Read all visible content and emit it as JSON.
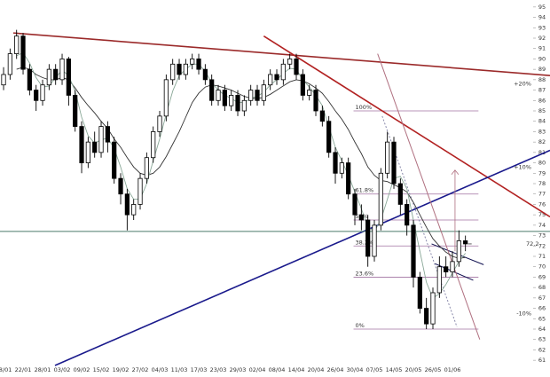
{
  "chart_data": {
    "type": "candlestick",
    "categories": [
      "18/01",
      null,
      null,
      "22/01",
      null,
      null,
      "28/01",
      null,
      null,
      "03/02",
      null,
      null,
      "09/02",
      null,
      null,
      "15/02",
      null,
      null,
      "19/02",
      null,
      null,
      "27/02",
      null,
      null,
      "04/03",
      null,
      null,
      "11/03",
      null,
      null,
      "17/03",
      null,
      null,
      "23/03",
      null,
      null,
      "29/03",
      null,
      null,
      "02/04",
      null,
      null,
      "08/04",
      null,
      null,
      "14/04",
      null,
      null,
      "20/04",
      null,
      null,
      "26/04",
      null,
      null,
      "30/04",
      null,
      null,
      "07/05",
      null,
      null,
      "14/05",
      null,
      null,
      "20/05",
      null,
      null,
      "26/05",
      null,
      null,
      "01/06",
      null,
      null
    ],
    "open": [
      87.5,
      88.5,
      90.5,
      92.2,
      89.0,
      87.0,
      86.0,
      87.5,
      89.0,
      88.0,
      90.0,
      86.5,
      83.5,
      80.0,
      82.0,
      81.0,
      83.5,
      82.0,
      78.5,
      77.0,
      75.0,
      76.0,
      78.5,
      80.5,
      83.0,
      84.5,
      88.0,
      89.5,
      88.5,
      89.5,
      90.0,
      89.0,
      88.0,
      86.0,
      87.0,
      85.5,
      86.5,
      85.0,
      86.0,
      87.0,
      86.0,
      87.5,
      88.5,
      88.0,
      89.5,
      90.0,
      88.5,
      86.5,
      87.0,
      85.0,
      84.0,
      81.0,
      79.0,
      80.0,
      77.0,
      75.0,
      74.5,
      71.0,
      74.0,
      79.0,
      82.0,
      78.0,
      76.0,
      74.0,
      69.0,
      66.0,
      64.5,
      67.5,
      70.0,
      69.5,
      70.5,
      72.5
    ],
    "high": [
      89.2,
      91.0,
      92.8,
      92.5,
      89.5,
      87.5,
      88.0,
      89.5,
      89.5,
      90.5,
      90.2,
      87.0,
      84.0,
      82.5,
      83.0,
      84.0,
      84.0,
      82.5,
      79.0,
      77.5,
      76.5,
      79.0,
      81.0,
      83.5,
      85.0,
      88.5,
      90.0,
      90.0,
      90.0,
      90.5,
      90.5,
      89.5,
      88.5,
      87.5,
      87.5,
      87.0,
      87.0,
      86.5,
      87.5,
      87.5,
      88.0,
      89.0,
      89.0,
      90.0,
      90.5,
      90.5,
      89.0,
      87.5,
      87.5,
      85.5,
      84.5,
      81.5,
      80.5,
      80.5,
      77.5,
      76.0,
      75.0,
      74.5,
      79.5,
      83.0,
      82.5,
      78.5,
      76.5,
      74.5,
      69.5,
      67.0,
      68.0,
      71.0,
      71.0,
      71.5,
      73.5,
      73.0
    ],
    "low": [
      87.0,
      88.0,
      90.0,
      88.5,
      86.5,
      85.0,
      85.5,
      87.0,
      87.5,
      87.5,
      85.5,
      83.0,
      79.0,
      79.5,
      80.5,
      80.5,
      81.0,
      78.0,
      76.0,
      73.5,
      74.5,
      75.5,
      78.0,
      80.0,
      82.5,
      84.0,
      87.5,
      88.0,
      88.0,
      89.0,
      88.5,
      87.5,
      85.5,
      85.5,
      85.0,
      85.0,
      84.5,
      84.5,
      85.5,
      85.5,
      85.5,
      87.0,
      87.5,
      87.5,
      89.0,
      88.0,
      86.0,
      86.0,
      84.5,
      83.5,
      80.5,
      78.0,
      78.5,
      76.5,
      74.0,
      73.5,
      70.0,
      70.5,
      73.5,
      78.5,
      77.5,
      75.0,
      73.0,
      68.0,
      65.5,
      64.0,
      64.0,
      67.0,
      69.0,
      69.0,
      70.0,
      71.5
    ],
    "close": [
      88.5,
      90.5,
      92.2,
      89.0,
      87.0,
      86.0,
      87.5,
      89.0,
      88.0,
      90.0,
      86.5,
      83.5,
      80.0,
      82.0,
      81.0,
      83.5,
      82.0,
      78.5,
      77.0,
      75.0,
      76.0,
      78.5,
      80.5,
      83.0,
      84.5,
      88.0,
      89.5,
      88.5,
      89.5,
      90.0,
      89.0,
      88.0,
      86.0,
      87.0,
      85.5,
      86.5,
      85.0,
      86.0,
      87.0,
      86.0,
      87.5,
      88.5,
      88.0,
      89.5,
      90.0,
      88.5,
      86.5,
      87.0,
      85.0,
      84.0,
      81.0,
      79.0,
      80.0,
      77.0,
      75.0,
      74.5,
      71.0,
      74.0,
      79.0,
      82.0,
      78.0,
      76.0,
      74.0,
      69.0,
      66.0,
      64.5,
      67.5,
      70.0,
      69.5,
      70.5,
      72.5,
      72.2
    ],
    "series": [
      {
        "color": "#333333",
        "values": [
          null,
          null,
          89,
          89.2,
          89.0,
          88.5,
          88.2,
          88.0,
          88.0,
          88.2,
          88.0,
          87.2,
          86.3,
          85.5,
          84.8,
          84.0,
          83.3,
          82.3,
          81.5,
          80.5,
          79.6,
          79.0,
          78.8,
          79.0,
          79.6,
          80.6,
          81.8,
          83.0,
          84.4,
          85.8,
          86.7,
          87.3,
          87.5,
          87.4,
          87.2,
          87.0,
          86.7,
          86.4,
          86.2,
          86.2,
          86.3,
          86.6,
          87.0,
          87.4,
          87.8,
          88.0,
          87.9,
          87.6,
          87.2,
          86.7,
          85.9,
          85.0,
          84.2,
          83.2,
          82.0,
          80.9,
          79.6,
          78.8,
          78.3,
          78.2,
          77.9,
          77.6,
          77.2,
          76.2,
          75.0,
          73.8,
          72.7,
          72.0,
          71.4,
          71.0,
          70.8,
          70.9
        ]
      },
      {
        "color": "#8aa898",
        "values": [
          null,
          null,
          90.3,
          90.6,
          89.6,
          88.2,
          87.3,
          87.4,
          88.2,
          88.9,
          88.4,
          86.9,
          84.4,
          82.6,
          81.9,
          82.2,
          82.4,
          81.4,
          79.6,
          77.5,
          76.5,
          76.5,
          78.0,
          80.2,
          82.3,
          84.7,
          86.9,
          88.4,
          89.0,
          89.5,
          89.5,
          88.8,
          87.7,
          87.0,
          86.5,
          86.2,
          85.8,
          85.8,
          86.2,
          86.4,
          86.8,
          87.5,
          88.0,
          88.6,
          89.1,
          89.0,
          88.0,
          87.3,
          86.5,
          85.5,
          83.5,
          81.5,
          80.2,
          78.8,
          77.2,
          75.6,
          73.8,
          73.4,
          74.5,
          76.5,
          78.5,
          78.7,
          77.5,
          74.5,
          71.5,
          68.5,
          67.0,
          67.4,
          68.3,
          69.4,
          70.5,
          71.3
        ]
      }
    ],
    "trendlines": [
      {
        "color": "#9b2a2a",
        "x": [
          1.5,
          84
        ],
        "y": [
          92.5,
          88.4
        ]
      },
      {
        "color": "#b22222",
        "x": [
          40,
          84
        ],
        "y": [
          92.2,
          74.8
        ]
      },
      {
        "color": "#1a1a8c",
        "x": [
          7.9,
          84
        ],
        "y": [
          60.5,
          81.2
        ]
      },
      {
        "color": "#4a7a6a",
        "x": [
          -0.55,
          84
        ],
        "y": [
          73.4,
          73.4
        ]
      },
      {
        "color": "#101050",
        "x": [
          65.8,
          73.8
        ],
        "y": [
          72.2,
          70.2
        ]
      },
      {
        "color": "#101050",
        "x": [
          66.3,
          72.2
        ],
        "y": [
          70.3,
          68.7
        ]
      },
      {
        "color": "#b07080",
        "x": [
          57.5,
          73.2
        ],
        "y": [
          90.5,
          63.0
        ]
      },
      {
        "color": "#8888aa",
        "x": [
          58.2,
          69.7
        ],
        "y": [
          84.5,
          64.2
        ],
        "dash": true
      }
    ],
    "fib_range": [
      53.8,
      73
    ],
    "fib_color": "#a070a0",
    "fib_levels": [
      {
        "value": 85,
        "label": "100%"
      },
      {
        "value": 77,
        "label": "61.8%"
      },
      {
        "value": 74.5,
        "label": "50%"
      },
      {
        "value": 72,
        "label": "38.2%"
      },
      {
        "value": 69,
        "label": "23.6%"
      },
      {
        "value": 64,
        "label": "0%"
      }
    ],
    "arrow": {
      "x": 69.4,
      "from": 71.5,
      "to": 79.3
    },
    "markers": [
      {
        "value": 87.6,
        "label": "+20%"
      },
      {
        "value": 79.6,
        "label": "+10%"
      },
      {
        "value": 65.5,
        "label": "-10%"
      }
    ],
    "price_label": 72.2,
    "xlim": [
      -0.55,
      84.0
    ],
    "ylim": [
      60.5,
      95.5
    ],
    "yticks": [
      61,
      62,
      63,
      64,
      65,
      66,
      67,
      68,
      69,
      70,
      71,
      72,
      73,
      74,
      75,
      76,
      77,
      78,
      79,
      80,
      81,
      82,
      83,
      84,
      85,
      86,
      87,
      88,
      89,
      90,
      91,
      92,
      93,
      94,
      95
    ]
  }
}
